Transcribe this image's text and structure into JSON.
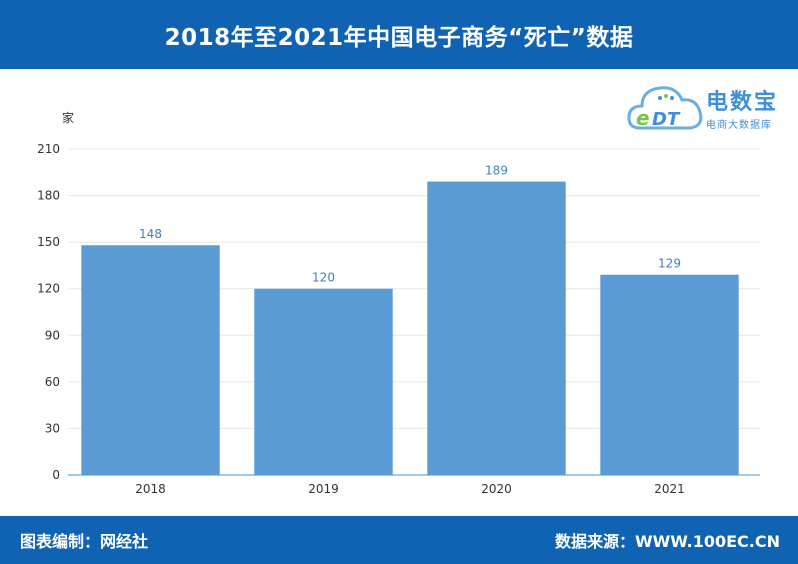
{
  "header": {
    "title": "2018年至2021年中国电子商务“死亡”数据"
  },
  "footer": {
    "left_text": "图表编制：网经社",
    "right_text": "数据来源：WWW.100EC.CN"
  },
  "logo": {
    "main_text": "电数宝",
    "sub_text": "电商大数据库",
    "badge_text": "EDT"
  },
  "colors": {
    "header_bg": "#0f63b2",
    "bar": "#5b9bd5",
    "data_label": "#3f7fbf",
    "axis": "#4a90c8"
  },
  "chart_data": {
    "type": "bar",
    "title": "",
    "xlabel": "",
    "ylabel": "家",
    "categories": [
      "2018",
      "2019",
      "2020",
      "2021"
    ],
    "values": [
      148,
      120,
      189,
      129
    ],
    "ylim": [
      0,
      210
    ],
    "yticks": [
      0,
      30,
      60,
      90,
      120,
      150,
      180,
      210
    ],
    "grid": true,
    "data_labels": true
  }
}
